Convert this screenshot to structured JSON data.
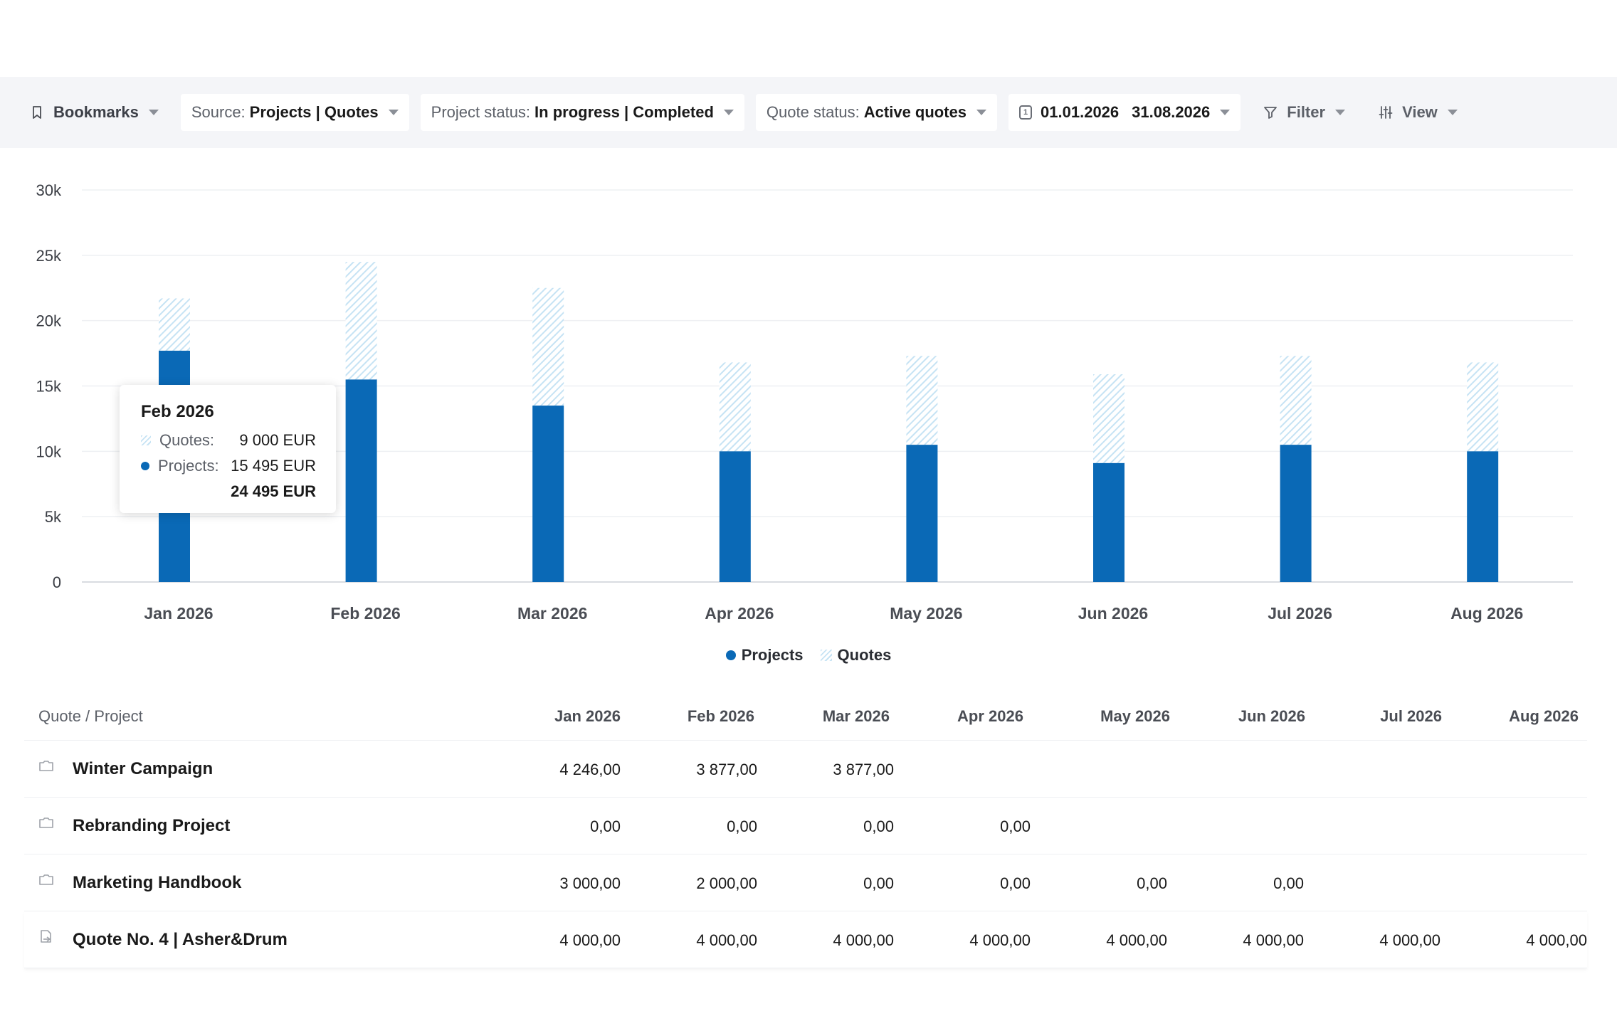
{
  "toolbar": {
    "bookmarks": {
      "label": "Bookmarks"
    },
    "source": {
      "label": "Source:",
      "value": "Projects | Quotes"
    },
    "project_status": {
      "label": "Project status:",
      "value": "In progress | Completed"
    },
    "quote_status": {
      "label": "Quote status:",
      "value": "Active quotes"
    },
    "date_range": {
      "icon_digit": "1",
      "from": "01.01.2026",
      "to": "31.08.2026"
    },
    "filter": {
      "label": "Filter"
    },
    "view": {
      "label": "View"
    }
  },
  "chart_data": {
    "type": "bar",
    "stacked": true,
    "categories": [
      "Jan 2026",
      "Feb 2026",
      "Mar 2026",
      "Apr 2026",
      "May 2026",
      "Jun 2026",
      "Jul 2026",
      "Aug 2026"
    ],
    "series": [
      {
        "name": "Projects",
        "values": [
          17700,
          15495,
          13500,
          10000,
          10500,
          9100,
          10500,
          10000
        ],
        "color": "#0a69b6"
      },
      {
        "name": "Quotes",
        "values": [
          4000,
          9000,
          9000,
          6800,
          6800,
          6800,
          6800,
          6800
        ],
        "color": "#c6e3f4"
      }
    ],
    "y_ticks": [
      "0",
      "5k",
      "10k",
      "15k",
      "20k",
      "25k",
      "30k"
    ],
    "ylim": [
      0,
      30000
    ],
    "grid": true,
    "legend_position": "bottom-center"
  },
  "tooltip": {
    "title": "Feb 2026",
    "quotes_label": "Quotes:",
    "quotes_value": "9 000 EUR",
    "projects_label": "Projects:",
    "projects_value": "15 495 EUR",
    "total": "24 495 EUR"
  },
  "legend": {
    "projects": "Projects",
    "quotes": "Quotes"
  },
  "table": {
    "first_header": "Quote / Project",
    "months": [
      "Jan 2026",
      "Feb 2026",
      "Mar 2026",
      "Apr 2026",
      "May 2026",
      "Jun 2026",
      "Jul 2026",
      "Aug 2026"
    ],
    "rows": [
      {
        "icon": "folder-icon",
        "name": "Winter Campaign",
        "values": [
          "4 246,00",
          "3 877,00",
          "3 877,00",
          "",
          "",
          "",
          "",
          ""
        ]
      },
      {
        "icon": "folder-icon",
        "name": "Rebranding Project",
        "values": [
          "0,00",
          "0,00",
          "0,00",
          "0,00",
          "",
          "",
          "",
          ""
        ]
      },
      {
        "icon": "folder-icon",
        "name": "Marketing Handbook",
        "values": [
          "3 000,00",
          "2 000,00",
          "0,00",
          "0,00",
          "0,00",
          "0,00",
          "",
          ""
        ]
      },
      {
        "icon": "quote-document-icon",
        "name": "Quote No. 4 | Asher&Drum",
        "values": [
          "4 000,00",
          "4 000,00",
          "4 000,00",
          "4 000,00",
          "4 000,00",
          "4 000,00",
          "4 000,00",
          "4 000,00"
        ]
      }
    ]
  }
}
